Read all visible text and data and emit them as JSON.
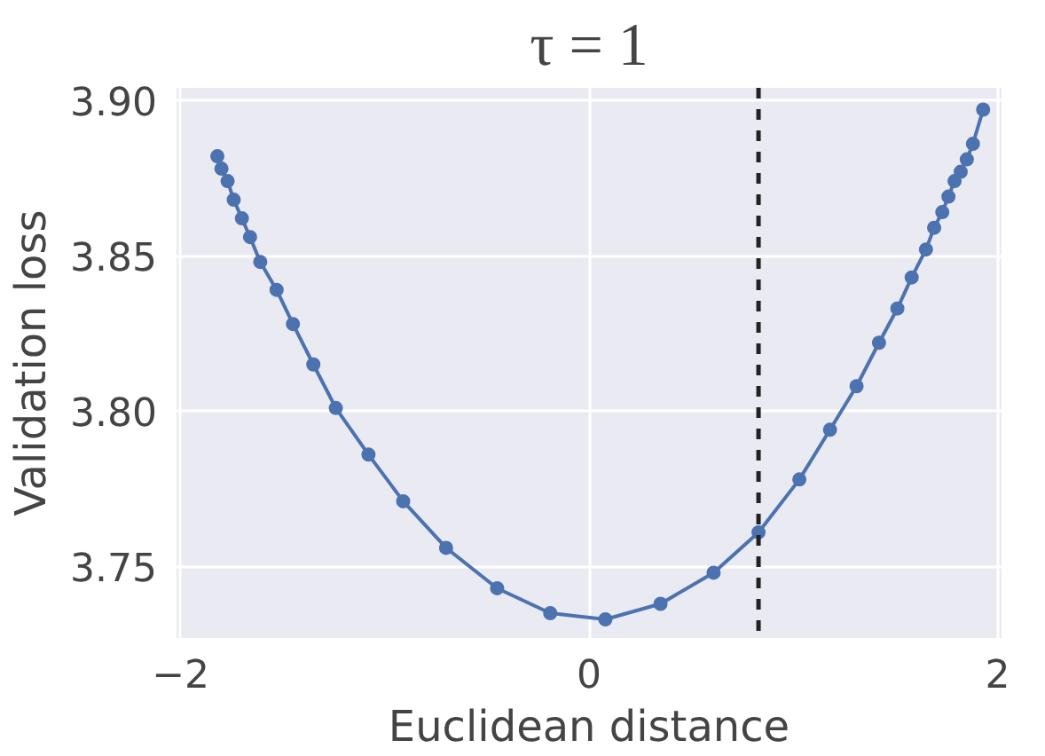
{
  "chart_data": {
    "type": "line",
    "title": "τ = 1",
    "xlabel": "Euclidean distance",
    "ylabel": "Validation loss",
    "x": [
      -1.82,
      -1.8,
      -1.77,
      -1.74,
      -1.7,
      -1.66,
      -1.61,
      -1.53,
      -1.45,
      -1.35,
      -1.24,
      -1.08,
      -0.91,
      -0.7,
      -0.45,
      -0.19,
      0.08,
      0.35,
      0.61,
      0.83,
      1.03,
      1.18,
      1.31,
      1.42,
      1.51,
      1.58,
      1.65,
      1.69,
      1.73,
      1.76,
      1.79,
      1.82,
      1.85,
      1.88,
      1.93
    ],
    "series": [
      {
        "color": "#4c72b0",
        "values": [
          3.882,
          3.878,
          3.874,
          3.868,
          3.862,
          3.856,
          3.848,
          3.839,
          3.828,
          3.815,
          3.801,
          3.786,
          3.771,
          3.756,
          3.743,
          3.735,
          3.733,
          3.738,
          3.748,
          3.761,
          3.778,
          3.794,
          3.808,
          3.822,
          3.833,
          3.843,
          3.852,
          3.859,
          3.864,
          3.869,
          3.874,
          3.877,
          3.881,
          3.886,
          3.897
        ]
      }
    ],
    "xlim": [
      -2.02,
      2.02
    ],
    "ylim": [
      3.727,
      3.904
    ],
    "xticks": [
      {
        "value": -2,
        "label": "−2"
      },
      0,
      2
    ],
    "yticks": [
      {
        "value": 3.75,
        "label": "3.75"
      },
      {
        "value": 3.8,
        "label": "3.80"
      },
      {
        "value": 3.85,
        "label": "3.85"
      },
      {
        "value": 3.9,
        "label": "3.90"
      }
    ],
    "grid": true,
    "marker": "circle",
    "line_style": "solid",
    "ref_lines": [
      {
        "axis": "x",
        "value": 0.83,
        "color": "#222222",
        "line_style": "dashed"
      }
    ]
  }
}
